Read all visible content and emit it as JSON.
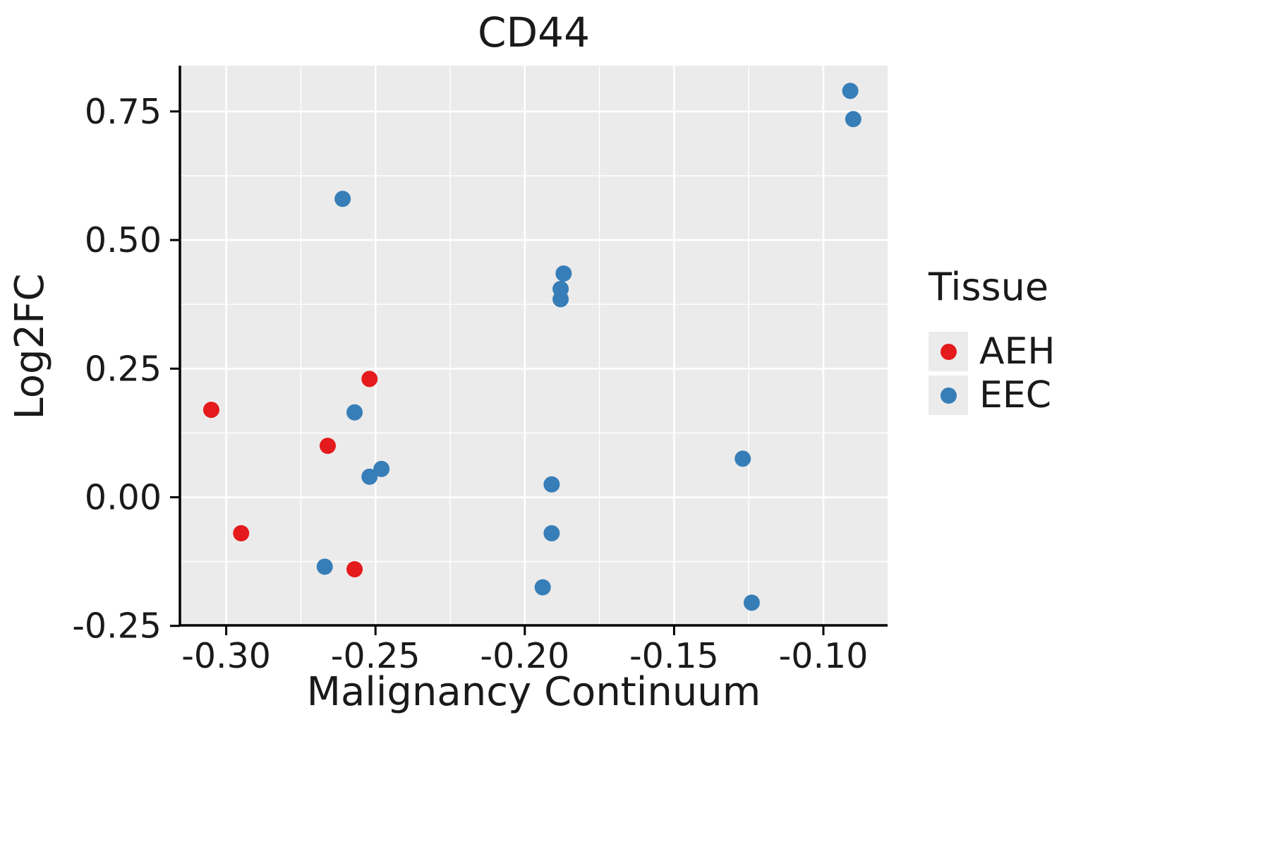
{
  "page": {
    "background": "#ffffff"
  },
  "chart_data": {
    "type": "scatter",
    "title": "CD44",
    "xlabel": "Malignancy Continuum",
    "ylabel": "Log2FC",
    "xlim": [
      -0.3155,
      -0.0785
    ],
    "ylim": [
      -0.249,
      0.839
    ],
    "x_ticks": {
      "values": [
        -0.3,
        -0.25,
        -0.2,
        -0.15,
        -0.1
      ],
      "labels": [
        "-0.30",
        "-0.25",
        "-0.20",
        "-0.15",
        "-0.10"
      ]
    },
    "y_ticks": {
      "values": [
        -0.25,
        0.0,
        0.25,
        0.5,
        0.75
      ],
      "labels": [
        "-0.25",
        "0.00",
        "0.25",
        "0.50",
        "0.75"
      ]
    },
    "x_minor": [
      -0.275,
      -0.225,
      -0.175,
      -0.125
    ],
    "y_minor": [
      -0.125,
      0.125,
      0.375,
      0.625
    ],
    "grid": true,
    "panel_color": "#ebebeb",
    "grid_color": "#ffffff",
    "axis_color": "#000000",
    "legend": {
      "title": "Tissue",
      "position": "right"
    },
    "series": [
      {
        "name": "AEH",
        "color": "#e41a1c",
        "points": [
          [
            -0.305,
            0.17
          ],
          [
            -0.295,
            -0.07
          ],
          [
            -0.266,
            0.1
          ],
          [
            -0.257,
            -0.14
          ],
          [
            -0.252,
            0.23
          ]
        ]
      },
      {
        "name": "EEC",
        "color": "#377eb8",
        "points": [
          [
            -0.261,
            0.58
          ],
          [
            -0.267,
            -0.135
          ],
          [
            -0.257,
            0.165
          ],
          [
            -0.252,
            0.04
          ],
          [
            -0.248,
            0.055
          ],
          [
            -0.187,
            0.435
          ],
          [
            -0.188,
            0.405
          ],
          [
            -0.188,
            0.385
          ],
          [
            -0.191,
            0.025
          ],
          [
            -0.191,
            -0.07
          ],
          [
            -0.194,
            -0.175
          ],
          [
            -0.127,
            0.075
          ],
          [
            -0.124,
            -0.205
          ],
          [
            -0.091,
            0.79
          ],
          [
            -0.09,
            0.735
          ]
        ]
      }
    ]
  }
}
